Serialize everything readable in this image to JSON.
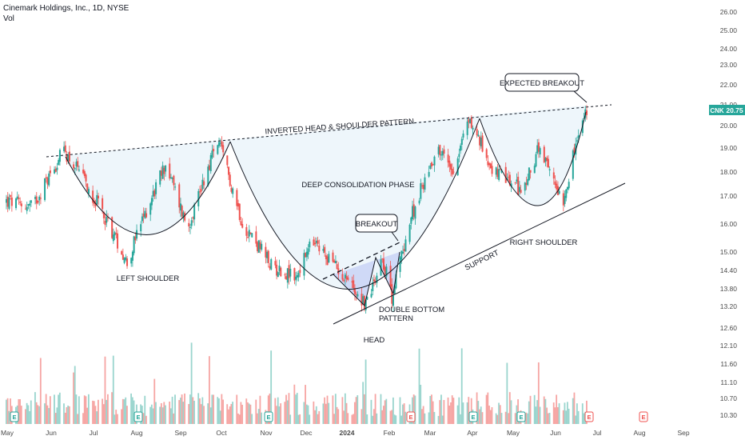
{
  "header": {
    "title": "Cinemark Holdings, Inc., 1D, NYSE",
    "vol_label": "Vol"
  },
  "chart_data": {
    "type": "candlestick",
    "symbol": "CNK",
    "interval": "1D",
    "exchange": "NYSE",
    "last_price": "20.75",
    "y_axis_scale": "log",
    "y_ticks": [
      "26.00",
      "25.00",
      "24.00",
      "23.00",
      "22.00",
      "21.00",
      "20.00",
      "19.00",
      "18.00",
      "17.00",
      "16.00",
      "15.00",
      "14.40",
      "13.80",
      "13.20",
      "12.60",
      "12.10",
      "11.60",
      "11.10",
      "10.70",
      "10.30"
    ],
    "x_ticks": [
      "May",
      "Jun",
      "Jul",
      "Aug",
      "Sep",
      "Oct",
      "Nov",
      "Dec",
      "2024",
      "Feb",
      "Mar",
      "Apr",
      "May",
      "Jun",
      "Jul",
      "Aug",
      "Sep"
    ],
    "price_path_knots": [
      {
        "date": "2023-05-01",
        "close": 16.8
      },
      {
        "date": "2023-05-20",
        "close": 16.6
      },
      {
        "date": "2023-06-12",
        "close": 18.9
      },
      {
        "date": "2023-07-10",
        "close": 16.4
      },
      {
        "date": "2023-07-28",
        "close": 14.6
      },
      {
        "date": "2023-08-25",
        "close": 18.3
      },
      {
        "date": "2023-09-10",
        "close": 15.8
      },
      {
        "date": "2023-10-02",
        "close": 19.3
      },
      {
        "date": "2023-10-20",
        "close": 16.0
      },
      {
        "date": "2023-11-10",
        "close": 14.5
      },
      {
        "date": "2023-11-28",
        "close": 14.1
      },
      {
        "date": "2023-12-10",
        "close": 15.3
      },
      {
        "date": "2024-01-02",
        "close": 14.2
      },
      {
        "date": "2024-01-18",
        "close": 13.25
      },
      {
        "date": "2024-01-30",
        "close": 14.8
      },
      {
        "date": "2024-02-06",
        "close": 13.5
      },
      {
        "date": "2024-02-20",
        "close": 16.2
      },
      {
        "date": "2024-03-10",
        "close": 19.0
      },
      {
        "date": "2024-03-22",
        "close": 18.1
      },
      {
        "date": "2024-04-02",
        "close": 20.3
      },
      {
        "date": "2024-04-20",
        "close": 18.0
      },
      {
        "date": "2024-05-12",
        "close": 17.2
      },
      {
        "date": "2024-05-22",
        "close": 18.9
      },
      {
        "date": "2024-06-10",
        "close": 16.9
      },
      {
        "date": "2024-06-19",
        "close": 19.1
      },
      {
        "date": "2024-06-27",
        "close": 20.75
      }
    ],
    "annotations": {
      "neckline": "INVERTED HEAD & SHOULDER PATTERN",
      "consolidation": "DEEP CONSOLIDATION PHASE",
      "breakout": "BREAKOUT",
      "expected_breakout": "EXPECTED BREAKOUT",
      "left_shoulder": "LEFT SHOULDER",
      "right_shoulder": "RIGHT SHOULDER",
      "head": "HEAD",
      "double_bottom_1": "DOUBLE BOTTOM",
      "double_bottom_2": "PATTERN",
      "support": "SUPPORT"
    },
    "event_markers": [
      "E",
      "E",
      "E",
      "E",
      "E",
      "E",
      "E",
      "E"
    ],
    "colors": {
      "up": "#26a69a",
      "down": "#ef5350",
      "pattern_fill": "#eef6fb",
      "triangle_fill": "#cfd9f7",
      "badge": "#26a69a"
    }
  }
}
